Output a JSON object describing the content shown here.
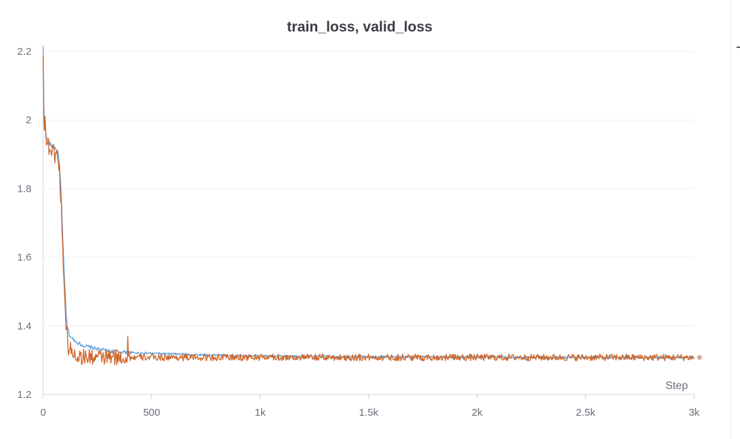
{
  "chart_data": {
    "type": "line",
    "title": "train_loss, valid_loss",
    "xlabel": "Step",
    "ylabel": "",
    "xlim": [
      0,
      3000
    ],
    "ylim": [
      1.2,
      2.2
    ],
    "x_ticks": [
      0,
      500,
      1000,
      1500,
      2000,
      2500,
      3000
    ],
    "x_tick_labels": [
      "0",
      "500",
      "1k",
      "1.5k",
      "2k",
      "2.5k",
      "3k"
    ],
    "y_ticks": [
      1.2,
      1.4,
      1.6,
      1.8,
      2.0,
      2.2
    ],
    "y_tick_labels": [
      "1.2",
      "1.4",
      "1.6",
      "1.8",
      "2",
      "2.2"
    ],
    "grid": "horizontal",
    "legend": "none",
    "series": [
      {
        "color": "#5b9bd5",
        "noise": 0.004,
        "x": [
          0,
          3,
          6,
          10,
          15,
          20,
          30,
          40,
          50,
          60,
          70,
          75,
          80,
          85,
          90,
          95,
          100,
          105,
          110,
          115,
          120,
          130,
          150,
          175,
          200,
          250,
          300,
          400,
          500,
          700,
          1000,
          1500,
          2000,
          2500,
          3000
        ],
        "y": [
          2.21,
          2.04,
          1.99,
          1.97,
          1.95,
          1.94,
          1.93,
          1.925,
          1.92,
          1.915,
          1.9,
          1.87,
          1.82,
          1.75,
          1.66,
          1.58,
          1.52,
          1.44,
          1.4,
          1.39,
          1.375,
          1.365,
          1.355,
          1.345,
          1.34,
          1.333,
          1.327,
          1.322,
          1.32,
          1.316,
          1.312,
          1.31,
          1.309,
          1.308,
          1.308
        ]
      },
      {
        "color": "#d0692e",
        "noise": 0.018,
        "x": [
          0,
          3,
          6,
          10,
          15,
          20,
          30,
          40,
          50,
          60,
          70,
          75,
          80,
          85,
          90,
          95,
          100,
          105,
          110,
          115,
          120,
          130,
          150,
          175,
          200,
          250,
          300,
          400,
          500,
          700,
          1000,
          1500,
          2000,
          2500,
          3000
        ],
        "y": [
          2.18,
          2.02,
          1.99,
          1.96,
          1.94,
          1.93,
          1.92,
          1.91,
          1.905,
          1.9,
          1.89,
          1.85,
          1.8,
          1.73,
          1.64,
          1.55,
          1.48,
          1.4,
          1.37,
          1.345,
          1.335,
          1.325,
          1.315,
          1.31,
          1.31,
          1.308,
          1.308,
          1.308,
          1.308,
          1.308,
          1.308,
          1.308,
          1.308,
          1.308,
          1.308
        ]
      }
    ],
    "spikes": [
      {
        "series": 1,
        "x": 390,
        "y": 1.37
      },
      {
        "series": 1,
        "x": 8,
        "y": 2.01
      },
      {
        "series": 1,
        "x": 82,
        "y": 1.76
      },
      {
        "series": 1,
        "x": 100,
        "y": 1.49
      }
    ],
    "end_marker_color": "#d9a98a"
  }
}
